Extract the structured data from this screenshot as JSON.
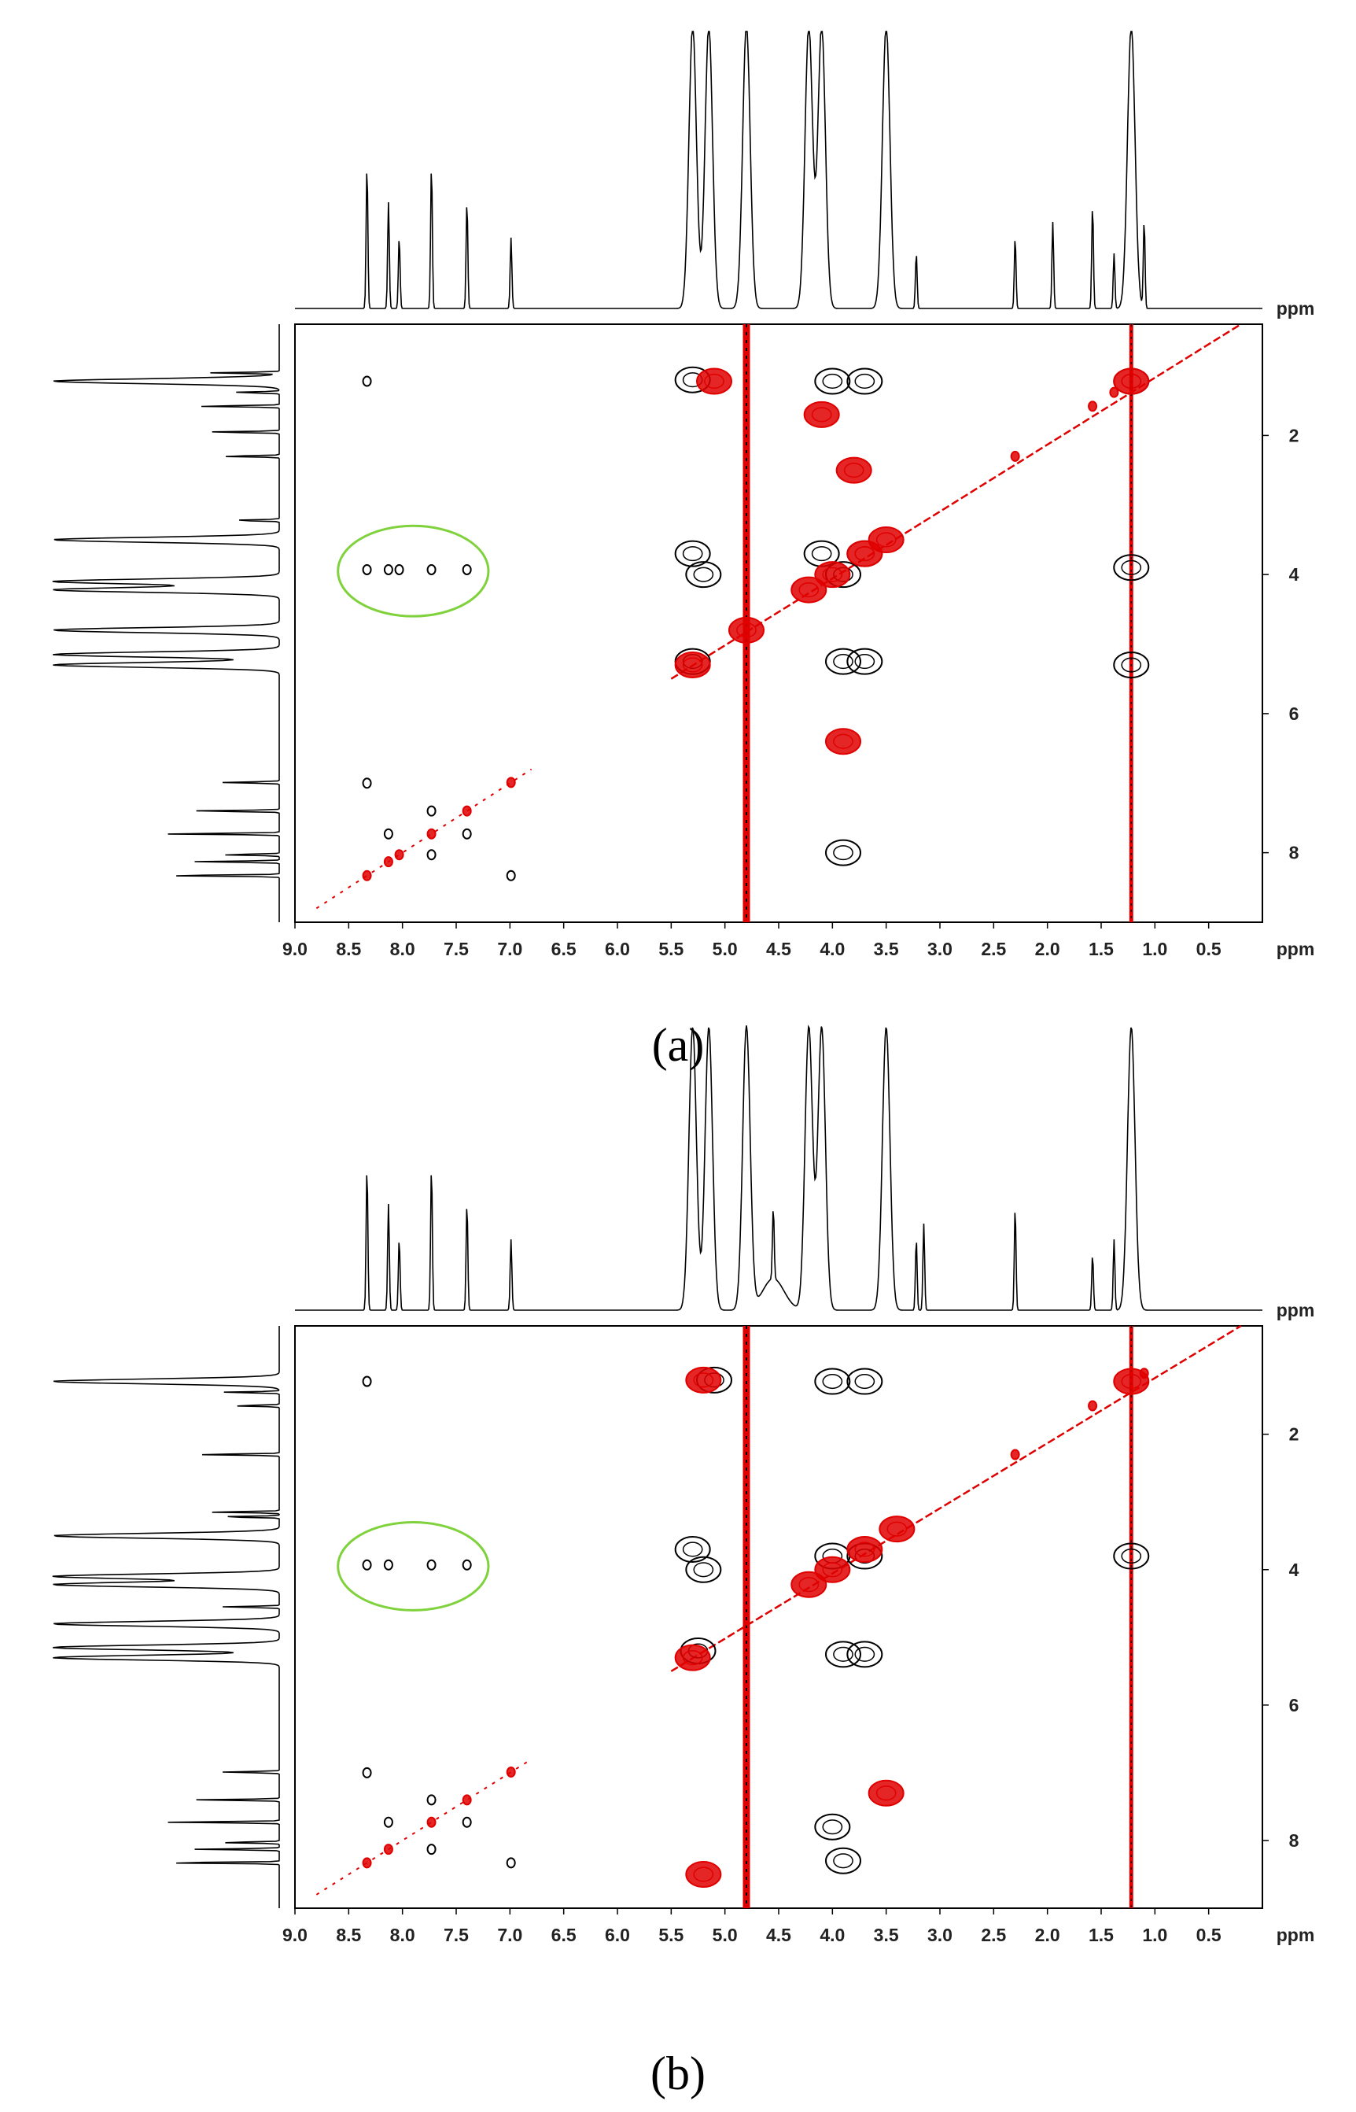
{
  "panel_labels": [
    "(a)",
    "(b)"
  ],
  "colors": {
    "positive": "#000000",
    "negative": "#e00000",
    "highlight": "#7fd23c"
  },
  "chart_data": [
    {
      "type": "scatter",
      "subtype": "2D NMR contour map with 1D projections",
      "label": "(a)",
      "title": "",
      "xlabel": "ppm",
      "ylabel": "ppm",
      "xlim": [
        9.0,
        0.0
      ],
      "ylim": [
        0.4,
        9.0
      ],
      "x_reversed": true,
      "x_ticks": [
        "9.0",
        "8.5",
        "8.0",
        "7.5",
        "7.0",
        "6.5",
        "6.0",
        "5.5",
        "5.0",
        "4.5",
        "4.0",
        "3.5",
        "3.0",
        "2.5",
        "2.0",
        "1.5",
        "1.0",
        "0.5"
      ],
      "y_ticks": [
        "2",
        "4",
        "6",
        "8"
      ],
      "grid": false,
      "projection_peaks_ppm": [
        8.33,
        8.13,
        8.03,
        7.73,
        7.4,
        6.99,
        5.3,
        5.15,
        4.8,
        4.22,
        4.1,
        3.5,
        3.22,
        2.3,
        1.95,
        1.58,
        1.38,
        1.22,
        1.1
      ],
      "highlighted_region": {
        "x": [
          7.2,
          8.6
        ],
        "y": [
          3.3,
          4.6
        ]
      },
      "water_line_ppm": 4.8,
      "series": [
        {
          "kind": "black",
          "points": [
            [
              8.33,
              1.22
            ],
            [
              8.33,
              3.93
            ],
            [
              8.13,
              3.93
            ],
            [
              8.03,
              3.93
            ],
            [
              7.73,
              3.93
            ],
            [
              7.4,
              3.93
            ],
            [
              8.33,
              7.0
            ],
            [
              8.13,
              7.73
            ],
            [
              7.73,
              7.4
            ],
            [
              7.4,
              7.73
            ],
            [
              7.73,
              8.03
            ],
            [
              6.99,
              8.33
            ],
            [
              5.3,
              3.7
            ],
            [
              5.2,
              4.0
            ],
            [
              5.3,
              1.2
            ],
            [
              5.3,
              5.25
            ],
            [
              4.1,
              3.7
            ],
            [
              3.9,
              4.0
            ],
            [
              3.7,
              3.7
            ],
            [
              4.0,
              1.22
            ],
            [
              3.7,
              1.22
            ],
            [
              3.9,
              5.25
            ],
            [
              3.7,
              5.25
            ],
            [
              3.9,
              8.0
            ],
            [
              1.22,
              3.9
            ],
            [
              1.22,
              5.3
            ],
            [
              1.22,
              1.22
            ]
          ]
        },
        {
          "kind": "red",
          "points": [
            [
              8.33,
              8.33
            ],
            [
              8.13,
              8.13
            ],
            [
              8.03,
              8.03
            ],
            [
              7.73,
              7.73
            ],
            [
              7.4,
              7.4
            ],
            [
              6.99,
              6.99
            ],
            [
              5.3,
              5.3
            ],
            [
              4.8,
              4.8
            ],
            [
              4.22,
              4.22
            ],
            [
              4.0,
              4.0
            ],
            [
              3.7,
              3.7
            ],
            [
              3.5,
              3.5
            ],
            [
              2.3,
              2.3
            ],
            [
              1.58,
              1.58
            ],
            [
              1.38,
              1.38
            ],
            [
              1.22,
              1.22
            ],
            [
              5.1,
              1.22
            ],
            [
              4.1,
              1.7
            ],
            [
              3.8,
              2.5
            ],
            [
              3.9,
              6.4
            ]
          ]
        }
      ]
    },
    {
      "type": "scatter",
      "subtype": "2D NMR contour map with 1D projections",
      "label": "(b)",
      "title": "",
      "xlabel": "ppm",
      "ylabel": "ppm",
      "xlim": [
        9.0,
        0.0
      ],
      "ylim": [
        0.4,
        9.0
      ],
      "x_reversed": true,
      "x_ticks": [
        "9.0",
        "8.5",
        "8.0",
        "7.5",
        "7.0",
        "6.5",
        "6.0",
        "5.5",
        "5.0",
        "4.5",
        "4.0",
        "3.5",
        "3.0",
        "2.5",
        "2.0",
        "1.5",
        "1.0",
        "0.5"
      ],
      "y_ticks": [
        "2",
        "4",
        "6",
        "8"
      ],
      "grid": false,
      "projection_peaks_ppm": [
        8.33,
        8.13,
        8.03,
        7.73,
        7.4,
        6.99,
        5.3,
        5.15,
        4.8,
        4.55,
        4.22,
        4.1,
        3.5,
        3.22,
        3.15,
        2.3,
        1.58,
        1.38,
        1.22
      ],
      "highlighted_region": {
        "x": [
          7.2,
          8.6
        ],
        "y": [
          3.3,
          4.6
        ]
      },
      "water_line_ppm": 4.8,
      "series": [
        {
          "kind": "black",
          "points": [
            [
              8.33,
              1.22
            ],
            [
              8.33,
              3.93
            ],
            [
              8.13,
              3.93
            ],
            [
              7.73,
              3.93
            ],
            [
              7.4,
              3.93
            ],
            [
              8.33,
              7.0
            ],
            [
              8.13,
              7.73
            ],
            [
              7.73,
              7.4
            ],
            [
              7.4,
              7.73
            ],
            [
              7.73,
              8.13
            ],
            [
              6.99,
              8.33
            ],
            [
              5.3,
              3.7
            ],
            [
              5.2,
              4.0
            ],
            [
              5.1,
              1.2
            ],
            [
              5.25,
              5.2
            ],
            [
              4.0,
              1.22
            ],
            [
              3.7,
              1.22
            ],
            [
              4.0,
              3.8
            ],
            [
              3.7,
              3.8
            ],
            [
              3.9,
              5.25
            ],
            [
              3.7,
              5.25
            ],
            [
              4.0,
              7.8
            ],
            [
              3.9,
              8.3
            ],
            [
              1.22,
              3.8
            ]
          ]
        },
        {
          "kind": "red",
          "points": [
            [
              8.33,
              8.33
            ],
            [
              8.13,
              8.13
            ],
            [
              7.73,
              7.73
            ],
            [
              7.4,
              7.4
            ],
            [
              6.99,
              6.99
            ],
            [
              5.3,
              5.3
            ],
            [
              4.22,
              4.22
            ],
            [
              4.0,
              4.0
            ],
            [
              3.7,
              3.7
            ],
            [
              3.4,
              3.4
            ],
            [
              2.3,
              2.3
            ],
            [
              1.58,
              1.58
            ],
            [
              1.22,
              1.22
            ],
            [
              1.1,
              1.1
            ],
            [
              5.2,
              1.2
            ],
            [
              5.2,
              8.5
            ],
            [
              3.5,
              7.3
            ]
          ]
        }
      ]
    }
  ]
}
